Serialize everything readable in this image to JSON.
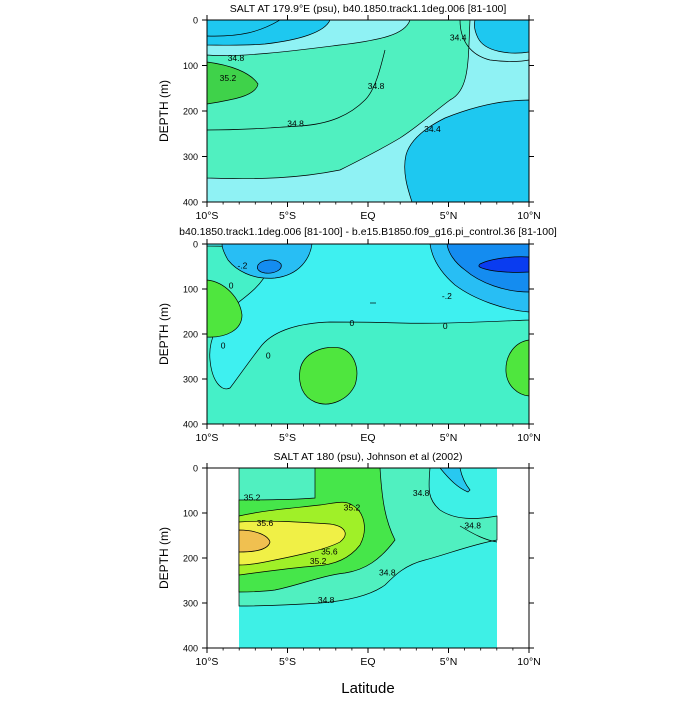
{
  "figure": {
    "xlabel": "Latitude"
  },
  "chart_data": [
    {
      "type": "contour",
      "title": "SALT AT 179.9°E (psu), b40.1850.track1.1deg.006 [81-100]",
      "ylabel": "DEPTH (m)",
      "xlim": [
        -10,
        10
      ],
      "ylim": [
        400,
        0
      ],
      "x_ticks": [
        "10°S",
        "5°S",
        "EQ",
        "5°N",
        "10°N"
      ],
      "y_ticks": [
        "0",
        "100",
        "200",
        "300",
        "400"
      ],
      "data_range": [
        -10,
        10
      ],
      "contour_labels": [
        {
          "text": "34.4",
          "x": 5.6,
          "y": 38
        },
        {
          "text": "34.8",
          "x": -8.2,
          "y": 84
        },
        {
          "text": "35.2",
          "x": -8.7,
          "y": 128
        },
        {
          "text": "34.8",
          "x": 0.5,
          "y": 145
        },
        {
          "text": "34.8",
          "x": -4.5,
          "y": 227
        },
        {
          "text": "34.4",
          "x": 4.0,
          "y": 240
        }
      ],
      "colors": {
        "deep": "#1ec8f0",
        "light": "#8ff2f4",
        "mid": "#50f0c0",
        "high": "#3fd24a"
      }
    },
    {
      "type": "contour",
      "title": "b40.1850.track1.1deg.006 [81-100] - b.e15.B1850.f09_g16.pi_control.36 [81-100]",
      "ylabel": "DEPTH (m)",
      "xlim": [
        -10,
        10
      ],
      "ylim": [
        400,
        0
      ],
      "x_ticks": [
        "10°S",
        "5°S",
        "EQ",
        "5°N",
        "10°N"
      ],
      "y_ticks": [
        "0",
        "100",
        "200",
        "300",
        "400"
      ],
      "data_range": [
        -10,
        10
      ],
      "contour_labels": [
        {
          "text": "-.2",
          "x": -7.8,
          "y": 48
        },
        {
          "text": "-.2",
          "x": 4.9,
          "y": 115
        },
        {
          "text": "0",
          "x": -8.5,
          "y": 92
        },
        {
          "text": "0",
          "x": -1.0,
          "y": 175
        },
        {
          "text": "0",
          "x": 4.8,
          "y": 182
        },
        {
          "text": "0",
          "x": -9.0,
          "y": 226
        },
        {
          "text": "0",
          "x": -6.2,
          "y": 248
        }
      ],
      "colors": {
        "dark_blue": "#0a3cf0",
        "blue": "#148cf0",
        "sky": "#28bef4",
        "cyan": "#3ef0f0",
        "aqua": "#45f0c8",
        "green": "#4fe63e"
      }
    },
    {
      "type": "contour",
      "title": "SALT AT 180 (psu), Johnson et al (2002)",
      "ylabel": "DEPTH (m)",
      "xlim": [
        -10,
        10
      ],
      "ylim": [
        400,
        0
      ],
      "x_ticks": [
        "10°S",
        "5°S",
        "EQ",
        "5°N",
        "10°N"
      ],
      "y_ticks": [
        "0",
        "100",
        "200",
        "300",
        "400"
      ],
      "data_range": [
        -8,
        8
      ],
      "contour_labels": [
        {
          "text": "35.2",
          "x": -7.2,
          "y": 66
        },
        {
          "text": "35.6",
          "x": -6.4,
          "y": 122
        },
        {
          "text": "35.6",
          "x": -2.4,
          "y": 186
        },
        {
          "text": "35.2",
          "x": -1.0,
          "y": 88
        },
        {
          "text": "35.2",
          "x": -3.1,
          "y": 207
        },
        {
          "text": "34.8",
          "x": 3.3,
          "y": 55
        },
        {
          "text": "34.8",
          "x": 6.5,
          "y": 128
        },
        {
          "text": "34.8",
          "x": 1.2,
          "y": 232
        },
        {
          "text": "34.8",
          "x": -2.6,
          "y": 293
        }
      ],
      "colors": {
        "cyan": "#3ef0e6",
        "aqua": "#50f0c0",
        "green": "#46e64a",
        "lime": "#a0f028",
        "yellow": "#f0f046",
        "orange": "#f0c050",
        "sky": "#28c8f0"
      }
    }
  ]
}
